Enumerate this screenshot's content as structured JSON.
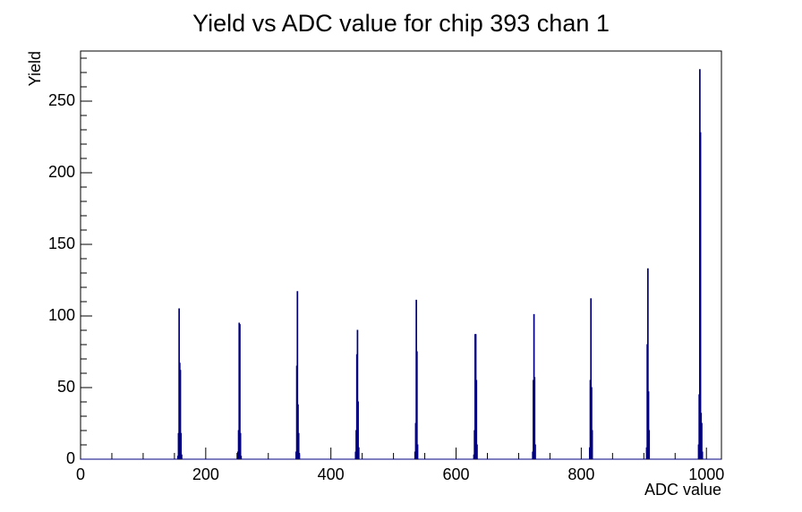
{
  "chart_data": {
    "type": "histogram",
    "title": "Yield vs ADC value for chip 393 chan 1",
    "x_label": "ADC value",
    "y_label": "Yield",
    "color": "#000080",
    "bins": [
      0,
      155,
      156,
      157,
      158,
      159,
      160,
      161,
      162,
      251,
      252,
      253,
      254,
      255,
      256,
      257,
      344,
      345,
      346,
      347,
      348,
      349,
      350,
      439,
      440,
      441,
      442,
      443,
      444,
      445,
      534,
      535,
      536,
      537,
      538,
      539,
      628,
      629,
      630,
      631,
      632,
      633,
      634,
      722,
      723,
      724,
      725,
      726,
      727,
      813,
      814,
      815,
      816,
      817,
      818,
      904,
      905,
      906,
      907,
      908,
      909,
      987,
      988,
      989,
      990,
      991,
      992,
      993,
      994,
      1024
    ],
    "counts": [
      0,
      2,
      18,
      105,
      67,
      62,
      18,
      3,
      0,
      5,
      20,
      95,
      94,
      18,
      2,
      0,
      5,
      65,
      117,
      38,
      18,
      3,
      0,
      5,
      20,
      73,
      90,
      40,
      8,
      0,
      5,
      25,
      111,
      75,
      10,
      0,
      3,
      20,
      87,
      87,
      55,
      10,
      0,
      5,
      55,
      101,
      57,
      10,
      0,
      8,
      55,
      112,
      50,
      20,
      0,
      8,
      80,
      133,
      47,
      20,
      0,
      10,
      45,
      272,
      228,
      32,
      25,
      5,
      0
    ],
    "xlim": [
      0,
      1024
    ],
    "ylim": [
      0,
      285
    ],
    "xticks": [
      0,
      200,
      400,
      600,
      800,
      1000
    ],
    "yticks": [
      0,
      50,
      100,
      150,
      200,
      250
    ]
  }
}
